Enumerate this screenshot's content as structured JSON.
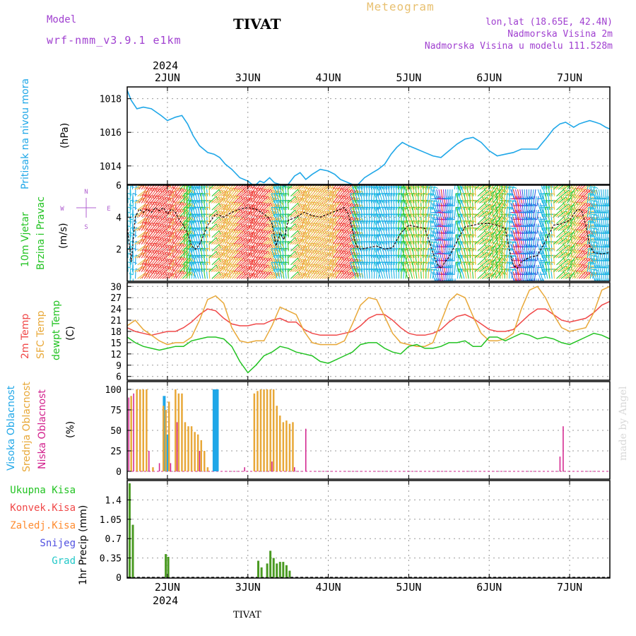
{
  "header": {
    "model_label": "Model",
    "model_name": "wrf-nmm_v3.9.1 e1km",
    "station": "TIVAT",
    "chart_title": "Meteogram",
    "lonlat": "lon,lat (18.65E, 42.4N)",
    "elevation": "Nadmorska Visina 2m",
    "model_elevation": "Nadmorska Visina u modelu 111.528m",
    "year_top": "2024",
    "year_bottom": "2024",
    "footer_station": "TIVAT",
    "watermark": "made by Angel"
  },
  "colors": {
    "pressure": "#1fa7e8",
    "temp2m": "#f04848",
    "sfc": "#e8a838",
    "dewpt": "#22c322",
    "high_cloud": "#1fa7e8",
    "mid_cloud": "#e8a838",
    "low_cloud": "#d21f8c",
    "total_precip": "#4a9a22",
    "conv_precip": "#f04848",
    "frozen": "#ff8c30",
    "snow": "#5050e0",
    "hail": "#22c8c8",
    "wind_side": "#b060d0",
    "model_text": "#a040d0",
    "title_orange": "#e8b040"
  },
  "chart_data": [
    {
      "type": "line",
      "panel": "pressure",
      "x_axis": "days since 1 Jun 2024 00 UTC",
      "x_ticks": [
        "2JUN",
        "3JUN",
        "4JUN",
        "5JUN",
        "6JUN",
        "7JUN"
      ],
      "xlim": [
        1.5,
        7.5
      ],
      "ylim": [
        1012.9,
        1018.7
      ],
      "yticks": [
        1014,
        1016,
        1018
      ],
      "ylabel_side": "Pritisak na nivou mora",
      "ylabel_unit": "(hPa)",
      "series": [
        {
          "x": [
            1.5,
            1.55,
            1.62,
            1.7,
            1.8,
            1.92,
            2.0,
            2.1,
            2.18,
            2.25,
            2.32,
            2.4,
            2.5,
            2.58,
            2.65,
            2.72,
            2.8,
            2.9,
            3.0,
            3.08,
            3.15,
            3.2,
            3.27,
            3.33,
            3.4,
            3.45,
            3.5,
            3.58,
            3.65,
            3.72,
            3.8,
            3.9,
            4.0,
            4.08,
            4.15,
            4.25,
            4.35,
            4.45,
            4.55,
            4.62,
            4.7,
            4.78,
            4.85,
            4.92,
            5.0,
            5.1,
            5.2,
            5.3,
            5.4,
            5.5,
            5.6,
            5.7,
            5.8,
            5.9,
            6.0,
            6.1,
            6.2,
            6.3,
            6.4,
            6.5,
            6.6,
            6.65,
            6.72,
            6.8,
            6.88,
            6.95,
            7.05,
            7.12,
            7.18,
            7.25,
            7.32,
            7.38,
            7.45,
            7.5
          ],
          "values": [
            1018.5,
            1017.9,
            1017.4,
            1017.5,
            1017.4,
            1017.0,
            1016.7,
            1016.9,
            1017.0,
            1016.5,
            1015.8,
            1015.2,
            1014.8,
            1014.7,
            1014.5,
            1014.1,
            1013.8,
            1013.3,
            1013.1,
            1012.8,
            1013.1,
            1013.0,
            1013.3,
            1013.0,
            1012.9,
            1012.8,
            1012.9,
            1013.4,
            1013.6,
            1013.2,
            1013.5,
            1013.8,
            1013.7,
            1013.5,
            1013.2,
            1013.0,
            1012.8,
            1013.3,
            1013.6,
            1013.8,
            1014.1,
            1014.7,
            1015.1,
            1015.4,
            1015.2,
            1015.0,
            1014.8,
            1014.6,
            1014.5,
            1014.9,
            1015.3,
            1015.6,
            1015.7,
            1015.4,
            1014.9,
            1014.6,
            1014.7,
            1014.8,
            1015.0,
            1015.0,
            1015.0,
            1015.3,
            1015.7,
            1016.2,
            1016.5,
            1016.6,
            1016.3,
            1016.5,
            1016.6,
            1016.7,
            1016.6,
            1016.5,
            1016.3,
            1016.2
          ]
        }
      ]
    },
    {
      "type": "barbs_and_line",
      "panel": "wind",
      "xlim": [
        1.5,
        7.5
      ],
      "ylim": [
        0,
        6
      ],
      "yticks": [
        2,
        4,
        6
      ],
      "ylabel_side_1": "10m Vjetar",
      "ylabel_side_2": "Brzina i Pravac",
      "ylabel_unit": "(m/s)",
      "compass": [
        "N",
        "E",
        "S",
        "W"
      ],
      "series": [
        {
          "name": "speed",
          "x": [
            1.5,
            1.55,
            1.6,
            1.65,
            1.7,
            1.75,
            1.8,
            1.85,
            1.9,
            1.95,
            2.0,
            2.05,
            2.1,
            2.15,
            2.2,
            2.25,
            2.3,
            2.35,
            2.4,
            2.5,
            2.6,
            2.7,
            2.8,
            2.9,
            3.0,
            3.1,
            3.2,
            3.25,
            3.3,
            3.35,
            3.4,
            3.45,
            3.5,
            3.6,
            3.7,
            3.8,
            3.9,
            4.0,
            4.1,
            4.2,
            4.25,
            4.3,
            4.35,
            4.4,
            4.5,
            4.6,
            4.7,
            4.8,
            4.9,
            5.0,
            5.1,
            5.2,
            5.3,
            5.35,
            5.4,
            5.45,
            5.5,
            5.6,
            5.7,
            5.8,
            5.9,
            6.0,
            6.1,
            6.2,
            6.25,
            6.3,
            6.35,
            6.4,
            6.5,
            6.6,
            6.7,
            6.8,
            6.9,
            7.0,
            7.05,
            7.1,
            7.15,
            7.2,
            7.25,
            7.3,
            7.4,
            7.5
          ],
          "values": [
            3.5,
            1.2,
            4.0,
            4.5,
            4.3,
            4.5,
            4.3,
            4.6,
            4.4,
            4.6,
            4.2,
            4.5,
            4.3,
            3.8,
            3.5,
            3.0,
            2.2,
            2.0,
            2.3,
            3.5,
            4.2,
            4.0,
            4.3,
            4.5,
            4.6,
            4.5,
            4.2,
            4.0,
            3.6,
            2.2,
            3.0,
            2.6,
            3.8,
            4.0,
            4.3,
            4.1,
            4.0,
            4.2,
            4.4,
            4.6,
            4.2,
            3.2,
            2.2,
            2.0,
            2.1,
            2.2,
            2.0,
            2.1,
            3.0,
            3.5,
            3.4,
            3.3,
            1.8,
            1.1,
            0.8,
            1.2,
            1.5,
            2.5,
            3.4,
            3.5,
            3.6,
            3.6,
            3.5,
            3.3,
            2.0,
            1.0,
            0.8,
            1.2,
            1.5,
            1.6,
            2.5,
            3.5,
            3.6,
            3.8,
            4.2,
            4.5,
            4.4,
            3.5,
            2.2,
            1.8,
            1.7,
            1.8
          ]
        }
      ]
    },
    {
      "type": "line",
      "panel": "temperature",
      "xlim": [
        1.5,
        7.5
      ],
      "ylim": [
        5,
        31
      ],
      "yticks": [
        6,
        9,
        12,
        15,
        18,
        21,
        24,
        27,
        30
      ],
      "ylabel_side_1": "2m Temp",
      "ylabel_side_2": "SFC Temp",
      "ylabel_side_3": "dewpt Temp",
      "ylabel_unit": "(C)",
      "series": [
        {
          "name": "2m Temp",
          "x": [
            1.5,
            1.6,
            1.7,
            1.8,
            1.9,
            2.0,
            2.1,
            2.2,
            2.3,
            2.4,
            2.5,
            2.6,
            2.7,
            2.8,
            2.9,
            3.0,
            3.1,
            3.2,
            3.3,
            3.4,
            3.5,
            3.6,
            3.7,
            3.8,
            3.9,
            4.0,
            4.1,
            4.2,
            4.3,
            4.4,
            4.5,
            4.6,
            4.7,
            4.8,
            4.9,
            5.0,
            5.1,
            5.2,
            5.3,
            5.4,
            5.5,
            5.6,
            5.7,
            5.8,
            5.9,
            6.0,
            6.1,
            6.2,
            6.3,
            6.4,
            6.5,
            6.6,
            6.7,
            6.8,
            6.9,
            7.0,
            7.1,
            7.2,
            7.3,
            7.4,
            7.5
          ],
          "values": [
            19.0,
            18.0,
            17.5,
            17.0,
            17.5,
            18.0,
            18.0,
            19.0,
            20.5,
            22.5,
            24.0,
            23.5,
            21.5,
            20.0,
            19.5,
            19.5,
            20.0,
            20.0,
            21.0,
            21.5,
            20.5,
            20.5,
            18.5,
            17.5,
            17.0,
            17.0,
            17.0,
            17.5,
            18.0,
            19.5,
            21.5,
            22.5,
            22.5,
            21.0,
            19.0,
            17.5,
            17.0,
            17.0,
            17.5,
            18.5,
            20.5,
            22.0,
            22.5,
            21.5,
            20.0,
            18.5,
            18.0,
            18.0,
            18.5,
            20.5,
            22.5,
            24.0,
            24.0,
            22.5,
            21.0,
            20.5,
            21.0,
            21.5,
            23.0,
            25.0,
            26.0
          ]
        },
        {
          "name": "SFC Temp",
          "x": [
            1.5,
            1.6,
            1.7,
            1.8,
            1.9,
            2.0,
            2.1,
            2.2,
            2.3,
            2.4,
            2.5,
            2.6,
            2.7,
            2.8,
            2.9,
            3.0,
            3.1,
            3.2,
            3.3,
            3.4,
            3.5,
            3.6,
            3.7,
            3.8,
            3.9,
            4.0,
            4.1,
            4.2,
            4.3,
            4.4,
            4.5,
            4.6,
            4.7,
            4.8,
            4.9,
            5.0,
            5.1,
            5.2,
            5.3,
            5.4,
            5.5,
            5.6,
            5.7,
            5.8,
            5.9,
            6.0,
            6.1,
            6.2,
            6.3,
            6.4,
            6.5,
            6.6,
            6.7,
            6.8,
            6.9,
            7.0,
            7.1,
            7.2,
            7.3,
            7.4,
            7.5
          ],
          "values": [
            19.5,
            21.0,
            18.5,
            17.0,
            15.5,
            14.5,
            15.0,
            15.0,
            16.5,
            21.0,
            26.5,
            27.5,
            25.5,
            19.0,
            15.5,
            15.0,
            15.5,
            15.5,
            19.5,
            24.5,
            23.5,
            22.5,
            18.0,
            15.0,
            14.5,
            14.5,
            14.5,
            15.5,
            20.0,
            25.0,
            27.0,
            26.5,
            22.0,
            17.5,
            15.0,
            14.5,
            14.0,
            14.0,
            15.0,
            20.5,
            26.0,
            28.0,
            27.0,
            22.0,
            17.5,
            15.5,
            15.5,
            16.0,
            17.5,
            24.0,
            29.0,
            30.0,
            27.0,
            22.5,
            19.0,
            18.0,
            18.5,
            19.0,
            23.0,
            29.0,
            30.0
          ]
        },
        {
          "name": "dewpt Temp",
          "x": [
            1.5,
            1.6,
            1.7,
            1.8,
            1.9,
            2.0,
            2.1,
            2.2,
            2.3,
            2.4,
            2.5,
            2.6,
            2.7,
            2.8,
            2.9,
            3.0,
            3.1,
            3.2,
            3.3,
            3.4,
            3.5,
            3.6,
            3.7,
            3.8,
            3.9,
            4.0,
            4.1,
            4.2,
            4.3,
            4.4,
            4.5,
            4.6,
            4.7,
            4.8,
            4.9,
            5.0,
            5.1,
            5.2,
            5.3,
            5.4,
            5.5,
            5.6,
            5.7,
            5.8,
            5.9,
            6.0,
            6.1,
            6.2,
            6.3,
            6.4,
            6.5,
            6.6,
            6.7,
            6.8,
            6.9,
            7.0,
            7.1,
            7.2,
            7.3,
            7.4,
            7.5
          ],
          "values": [
            16.5,
            15.0,
            14.0,
            13.5,
            13.0,
            13.5,
            14.0,
            14.0,
            15.5,
            16.0,
            16.5,
            16.5,
            16.0,
            14.0,
            10.0,
            7.0,
            9.0,
            11.5,
            12.5,
            14.0,
            13.5,
            12.5,
            12.0,
            11.5,
            10.0,
            9.5,
            10.5,
            11.5,
            12.5,
            14.5,
            15.0,
            15.0,
            13.5,
            12.5,
            12.0,
            14.0,
            14.5,
            13.5,
            13.5,
            14.0,
            15.0,
            15.0,
            15.5,
            14.0,
            14.0,
            16.5,
            16.5,
            15.5,
            16.5,
            17.5,
            17.0,
            16.0,
            16.5,
            16.0,
            15.0,
            14.5,
            15.5,
            16.5,
            17.5,
            17.0,
            16.0
          ]
        }
      ]
    },
    {
      "type": "bar",
      "panel": "clouds",
      "xlim": [
        1.5,
        7.5
      ],
      "ylim": [
        0,
        100
      ],
      "yticks": [
        0,
        25,
        50,
        75,
        100
      ],
      "ylabel_side_1": "Visoka Oblacnost",
      "ylabel_side_2": "Srednja Oblacnost",
      "ylabel_side_3": "Niska Oblacnost",
      "ylabel_unit": "(%)",
      "series": [
        {
          "name": "Visoka Oblacnost",
          "x": [
            1.96,
            2.0,
            2.58,
            2.6,
            2.62
          ],
          "values": [
            92,
            45,
            100,
            100,
            100
          ]
        },
        {
          "name": "Srednja Oblacnost",
          "x": [
            1.55,
            1.62,
            1.66,
            1.7,
            1.74,
            1.82,
            1.95,
            1.98,
            2.02,
            2.1,
            2.14,
            2.18,
            2.22,
            2.26,
            2.3,
            2.34,
            2.38,
            2.42,
            2.46,
            2.5,
            3.08,
            3.12,
            3.16,
            3.2,
            3.24,
            3.28,
            3.32,
            3.36,
            3.4,
            3.44,
            3.48,
            3.52,
            3.56
          ],
          "values": [
            92,
            100,
            100,
            100,
            100,
            5,
            80,
            75,
            85,
            100,
            95,
            95,
            60,
            55,
            55,
            48,
            45,
            38,
            25,
            5,
            95,
            98,
            100,
            100,
            100,
            100,
            100,
            80,
            68,
            60,
            62,
            58,
            60
          ]
        },
        {
          "name": "Niska Oblacnost",
          "x": [
            1.52,
            1.58,
            1.77,
            1.9,
            2.04,
            2.12,
            2.4,
            2.96,
            3.3,
            3.58,
            3.72,
            6.88,
            6.92
          ],
          "values": [
            90,
            95,
            25,
            10,
            10,
            60,
            25,
            5,
            12,
            5,
            52,
            18,
            55
          ]
        }
      ]
    },
    {
      "type": "bar",
      "panel": "precipitation",
      "xlim": [
        1.5,
        7.5
      ],
      "ylim": [
        0,
        1.75
      ],
      "yticks": [
        "0",
        "0.35",
        "0.7",
        "1.05",
        "1.4"
      ],
      "ylabel": "1hr Precip (mm)",
      "legend": [
        "Ukupna Kisa",
        "Konvek.Kisa",
        "Zaledj.Kisa",
        "Snijeg",
        "Grad"
      ],
      "series": [
        {
          "name": "Ukupna Kisa",
          "x": [
            1.53,
            1.57,
            1.98,
            2.01,
            3.13,
            3.17,
            3.24,
            3.28,
            3.32,
            3.36,
            3.4,
            3.44,
            3.48,
            3.52
          ],
          "values": [
            1.7,
            0.95,
            0.42,
            0.37,
            0.3,
            0.18,
            0.25,
            0.48,
            0.35,
            0.25,
            0.28,
            0.28,
            0.22,
            0.12
          ]
        }
      ]
    }
  ]
}
